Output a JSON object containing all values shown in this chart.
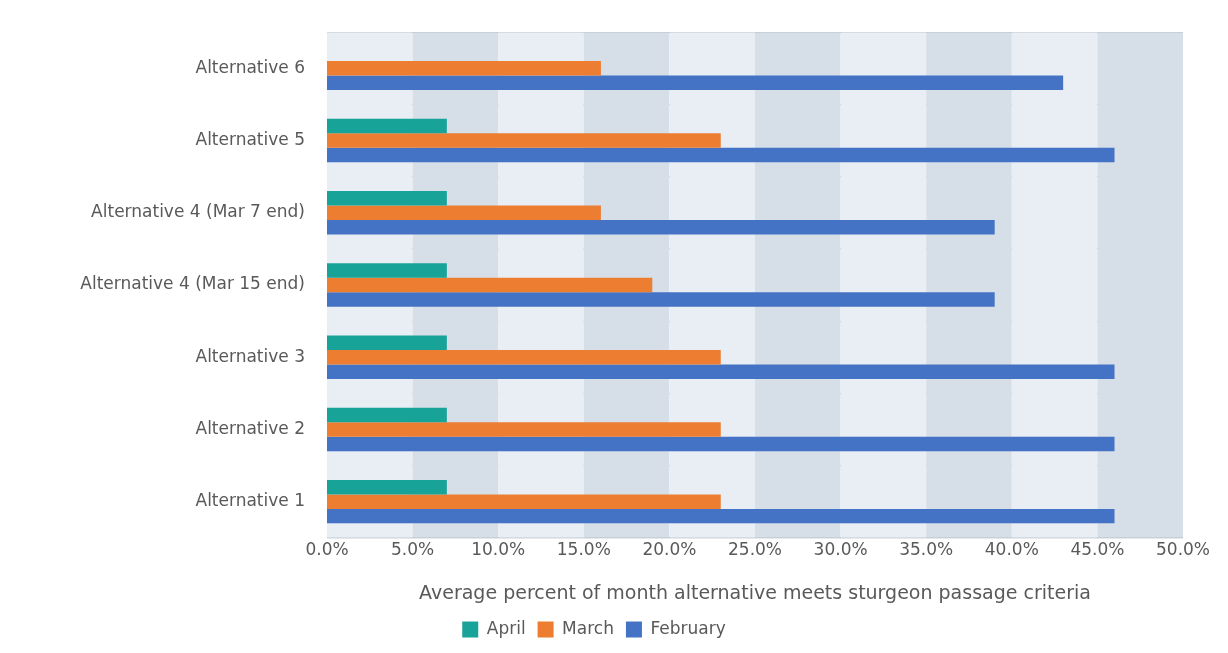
{
  "chart_data": {
    "type": "bar",
    "orientation": "horizontal",
    "xlabel": "Average percent of month alternative meets sturgeon passage criteria",
    "categories": [
      "Alternative 6",
      "Alternative 5",
      "Alternative 4 (Mar 7 end)",
      "Alternative 4 (Mar 15 end)",
      "Alternative 3",
      "Alternative 2",
      "Alternative 1"
    ],
    "series": [
      {
        "name": "April",
        "color": "#17a398",
        "values": [
          null,
          7,
          7,
          7,
          7,
          7,
          7
        ]
      },
      {
        "name": "March",
        "color": "#ed7d31",
        "values": [
          16,
          23,
          16,
          19,
          23,
          23,
          23
        ]
      },
      {
        "name": "February",
        "color": "#4472c4",
        "values": [
          43,
          46,
          39,
          39,
          46,
          46,
          46
        ]
      }
    ],
    "xlim": [
      0,
      50
    ],
    "xticks": [
      {
        "value": 0,
        "label": "0.0%"
      },
      {
        "value": 5,
        "label": "5.0%"
      },
      {
        "value": 10,
        "label": "10.0%"
      },
      {
        "value": 15,
        "label": "15.0%"
      },
      {
        "value": 20,
        "label": "20.0%"
      },
      {
        "value": 25,
        "label": "25.0%"
      },
      {
        "value": 30,
        "label": "30.0%"
      },
      {
        "value": 35,
        "label": "35.0%"
      },
      {
        "value": 40,
        "label": "40.0%"
      },
      {
        "value": 45,
        "label": "45.0%"
      },
      {
        "value": 50,
        "label": "50.0%"
      }
    ],
    "bands": [
      {
        "axis": "x",
        "from": 0,
        "to": 5,
        "color": "#e9eef4"
      },
      {
        "axis": "x",
        "from": 5,
        "to": 10,
        "color": "#d6dfe8"
      },
      {
        "axis": "x",
        "from": 10,
        "to": 15,
        "color": "#e9eef4"
      },
      {
        "axis": "x",
        "from": 15,
        "to": 20,
        "color": "#d6dfe8"
      },
      {
        "axis": "x",
        "from": 20,
        "to": 25,
        "color": "#e9eef4"
      },
      {
        "axis": "x",
        "from": 25,
        "to": 30,
        "color": "#d6dfe8"
      },
      {
        "axis": "x",
        "from": 30,
        "to": 35,
        "color": "#e9eef4"
      },
      {
        "axis": "x",
        "from": 35,
        "to": 40,
        "color": "#d6dfe8"
      },
      {
        "axis": "x",
        "from": 40,
        "to": 45,
        "color": "#e9eef4"
      },
      {
        "axis": "x",
        "from": 45,
        "to": 50,
        "color": "#d6dfe8"
      }
    ],
    "grid": "y",
    "legend": "bottom"
  }
}
